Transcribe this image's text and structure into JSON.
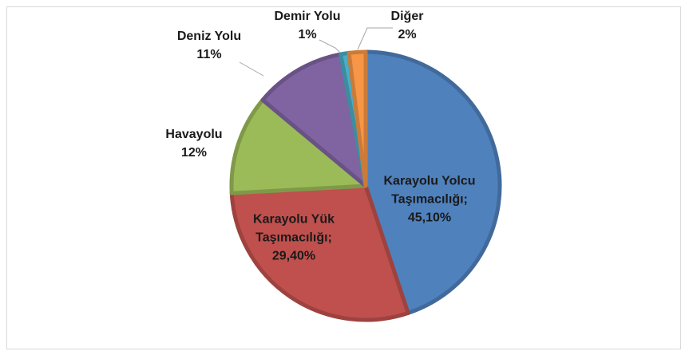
{
  "chart_data": {
    "type": "pie",
    "categories": [
      "Karayolu Yolcu Taşımacılığı;",
      "Karayolu Yük Taşımacılığı;",
      "Havayolu",
      "Deniz Yolu",
      "Demir Yolu",
      "Diğer"
    ],
    "values": [
      45.1,
      29.4,
      12,
      11,
      1,
      2
    ],
    "value_labels": [
      "45,10%",
      "29,40%",
      "12%",
      "11%",
      "1%",
      "2%"
    ],
    "colors": [
      "#4f81bd",
      "#c0504d",
      "#9bbb59",
      "#8064a2",
      "#4bacc6",
      "#f79646"
    ]
  }
}
